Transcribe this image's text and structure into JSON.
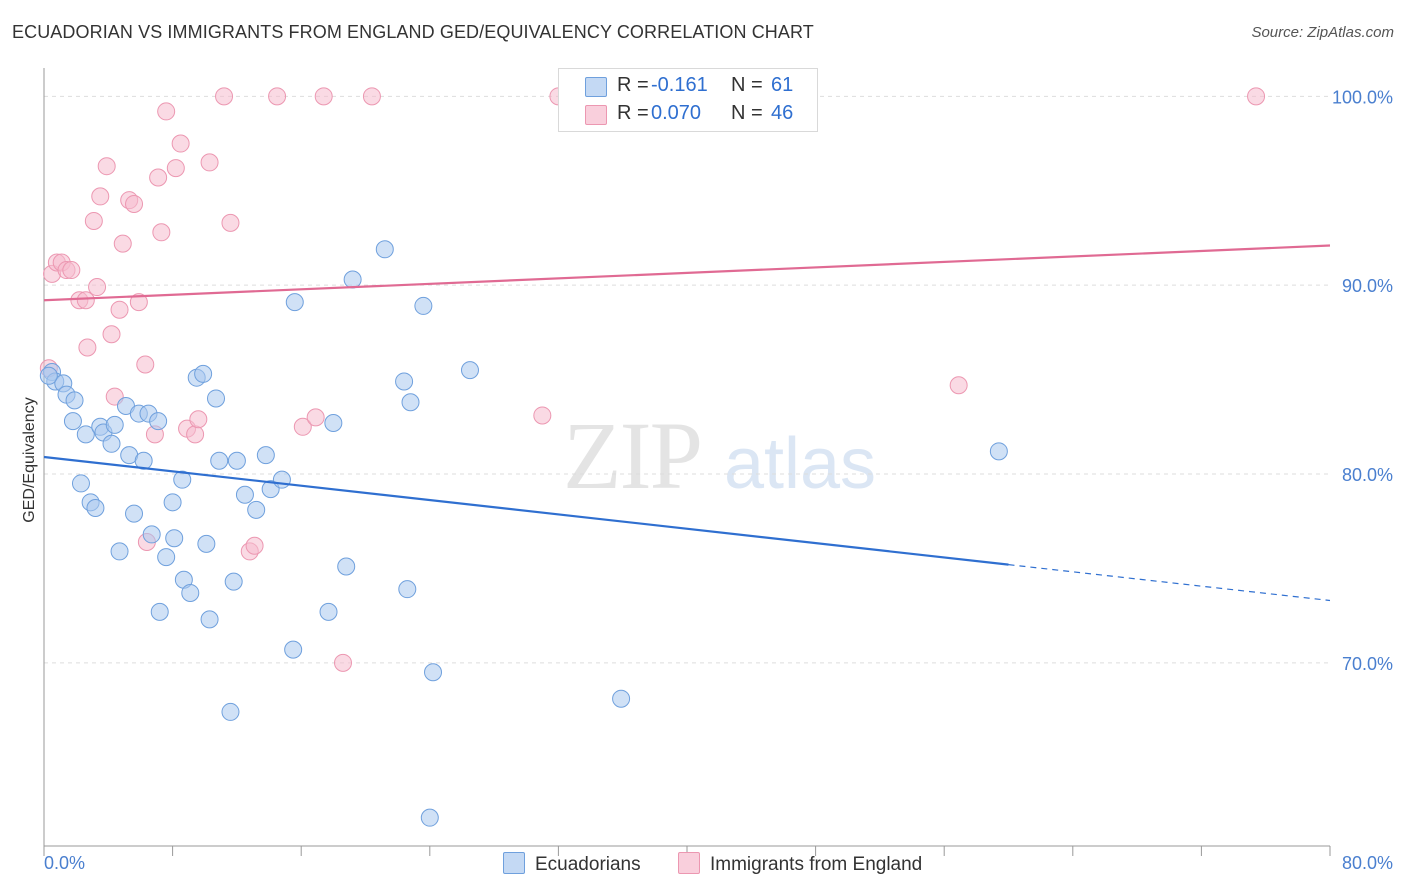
{
  "title": "ECUADORIAN VS IMMIGRANTS FROM ENGLAND GED/EQUIVALENCY CORRELATION CHART",
  "source": "Source: ZipAtlas.com",
  "watermark": {
    "zip": "ZIP",
    "atlas": "atlas"
  },
  "legend": {
    "series1": {
      "r_label": "R =",
      "r_value": "-0.161",
      "n_label": "N =",
      "n_value": "61"
    },
    "series2": {
      "r_label": "R =",
      "r_value": "0.070",
      "n_label": "N =",
      "n_value": "46"
    }
  },
  "bottom_legend": {
    "series1": "Ecuadorians",
    "series2": "Immigrants from England"
  },
  "colors": {
    "blue_fill": "#a9c8ef",
    "blue_stroke": "#6fa0dd",
    "blue_line": "#2f6fd0",
    "pink_fill": "#f6bccd",
    "pink_stroke": "#ec97b1",
    "pink_line": "#e06a93",
    "tick_label": "#4a7fcf",
    "grid": "#dddddd"
  },
  "chart_data": {
    "type": "scatter",
    "title": "ECUADORIAN VS IMMIGRANTS FROM ENGLAND GED/EQUIVALENCY CORRELATION CHART",
    "xlabel": "",
    "ylabel": "GED/Equivalency",
    "xlim": [
      0,
      80
    ],
    "ylim": [
      60.3,
      101.5
    ],
    "x_tick_labels": [
      "0.0%",
      "80.0%"
    ],
    "y_ticks": [
      70,
      80,
      90,
      100
    ],
    "y_tick_labels": [
      "70.0%",
      "80.0%",
      "90.0%",
      "100.0%"
    ],
    "grid": true,
    "series": [
      {
        "name": "Ecuadorians",
        "color": "#a9c8ef",
        "points": [
          [
            0.5,
            85.4
          ],
          [
            0.7,
            84.9
          ],
          [
            1.2,
            84.8
          ],
          [
            1.4,
            84.2
          ],
          [
            1.8,
            82.8
          ],
          [
            1.9,
            83.9
          ],
          [
            2.3,
            79.5
          ],
          [
            2.6,
            82.1
          ],
          [
            2.9,
            78.5
          ],
          [
            3.2,
            78.2
          ],
          [
            3.5,
            82.5
          ],
          [
            3.7,
            82.2
          ],
          [
            4.2,
            81.6
          ],
          [
            4.4,
            82.6
          ],
          [
            4.7,
            75.9
          ],
          [
            5.1,
            83.6
          ],
          [
            5.3,
            81.0
          ],
          [
            5.6,
            77.9
          ],
          [
            5.9,
            83.2
          ],
          [
            6.2,
            80.7
          ],
          [
            6.5,
            83.2
          ],
          [
            6.7,
            76.8
          ],
          [
            7.1,
            82.8
          ],
          [
            7.2,
            72.7
          ],
          [
            7.6,
            75.6
          ],
          [
            8.0,
            78.5
          ],
          [
            8.1,
            76.6
          ],
          [
            8.6,
            79.7
          ],
          [
            8.7,
            74.4
          ],
          [
            9.1,
            73.7
          ],
          [
            9.5,
            85.1
          ],
          [
            9.9,
            85.3
          ],
          [
            10.1,
            76.3
          ],
          [
            10.3,
            72.3
          ],
          [
            10.7,
            84.0
          ],
          [
            10.9,
            80.7
          ],
          [
            11.6,
            67.4
          ],
          [
            11.8,
            74.3
          ],
          [
            12.0,
            80.7
          ],
          [
            12.5,
            78.9
          ],
          [
            13.2,
            78.1
          ],
          [
            13.8,
            81.0
          ],
          [
            14.1,
            79.2
          ],
          [
            14.8,
            79.7
          ],
          [
            15.5,
            70.7
          ],
          [
            15.6,
            89.1
          ],
          [
            17.7,
            72.7
          ],
          [
            18.0,
            82.7
          ],
          [
            18.8,
            75.1
          ],
          [
            19.2,
            90.3
          ],
          [
            21.2,
            91.9
          ],
          [
            22.4,
            84.9
          ],
          [
            22.6,
            73.9
          ],
          [
            22.8,
            83.8
          ],
          [
            23.6,
            88.9
          ],
          [
            24.0,
            61.8
          ],
          [
            24.2,
            69.5
          ],
          [
            26.5,
            85.5
          ],
          [
            35.9,
            68.1
          ],
          [
            59.4,
            81.2
          ],
          [
            0.3,
            85.2
          ]
        ]
      },
      {
        "name": "Immigrants from England",
        "color": "#f6bccd",
        "points": [
          [
            0.3,
            85.6
          ],
          [
            0.5,
            90.6
          ],
          [
            0.8,
            91.2
          ],
          [
            1.1,
            91.2
          ],
          [
            1.4,
            90.8
          ],
          [
            1.7,
            90.8
          ],
          [
            2.2,
            89.2
          ],
          [
            2.6,
            89.2
          ],
          [
            2.7,
            86.7
          ],
          [
            3.1,
            93.4
          ],
          [
            3.3,
            89.9
          ],
          [
            3.5,
            94.7
          ],
          [
            3.9,
            96.3
          ],
          [
            4.2,
            87.4
          ],
          [
            4.4,
            84.1
          ],
          [
            4.7,
            88.7
          ],
          [
            4.9,
            92.2
          ],
          [
            5.3,
            94.5
          ],
          [
            5.6,
            94.3
          ],
          [
            5.9,
            89.1
          ],
          [
            6.3,
            85.8
          ],
          [
            6.4,
            76.4
          ],
          [
            6.9,
            82.1
          ],
          [
            7.1,
            95.7
          ],
          [
            7.3,
            92.8
          ],
          [
            7.6,
            99.2
          ],
          [
            8.2,
            96.2
          ],
          [
            8.5,
            97.5
          ],
          [
            8.9,
            82.4
          ],
          [
            9.4,
            82.1
          ],
          [
            9.6,
            82.9
          ],
          [
            10.3,
            96.5
          ],
          [
            11.2,
            100.0
          ],
          [
            11.6,
            93.3
          ],
          [
            12.8,
            75.9
          ],
          [
            13.1,
            76.2
          ],
          [
            14.5,
            100.0
          ],
          [
            16.1,
            82.5
          ],
          [
            16.9,
            83.0
          ],
          [
            17.4,
            100.0
          ],
          [
            18.6,
            70.0
          ],
          [
            20.4,
            100.0
          ],
          [
            31.0,
            83.1
          ],
          [
            32.0,
            100.0
          ],
          [
            56.9,
            84.7
          ],
          [
            75.4,
            100.0
          ]
        ]
      }
    ],
    "trendlines": [
      {
        "series": "Ecuadorians",
        "x": [
          0,
          60
        ],
        "y": [
          80.9,
          75.2
        ],
        "dashed_extension_to": 80,
        "dashed_y": [
          75.2,
          73.3
        ]
      },
      {
        "series": "Immigrants from England",
        "x": [
          0,
          80
        ],
        "y": [
          89.2,
          92.1
        ]
      }
    ]
  }
}
